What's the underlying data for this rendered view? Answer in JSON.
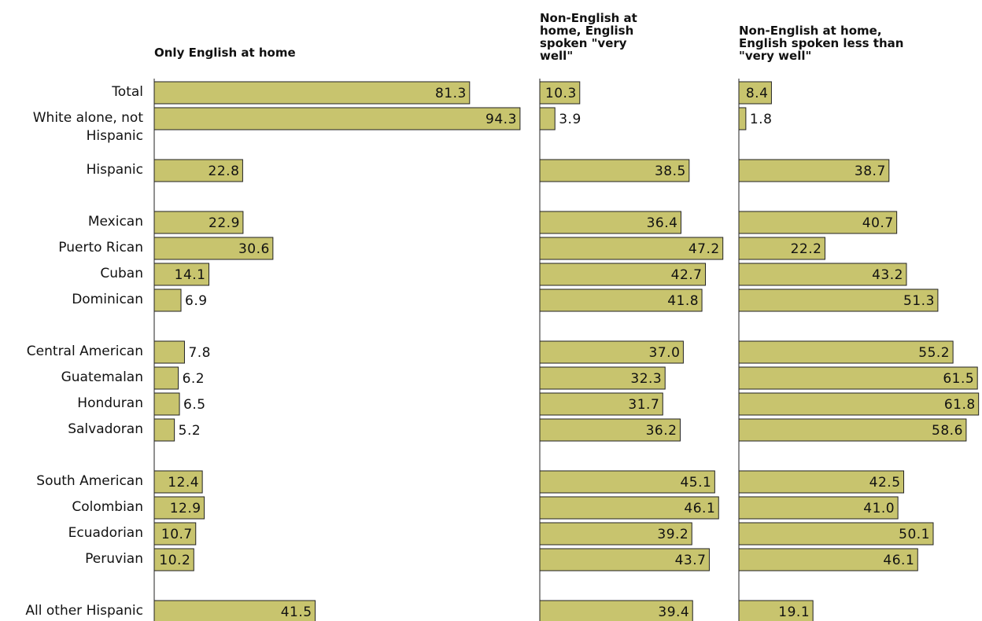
{
  "chart_data": {
    "type": "bar",
    "orientation": "horizontal",
    "color": "#c8c46e",
    "categories": [
      "Total",
      "White alone, not Hispanic",
      "Hispanic",
      "Mexican",
      "Puerto Rican",
      "Cuban",
      "Dominican",
      "Central American",
      "Guatemalan",
      "Honduran",
      "Salvadoran",
      "South American",
      "Colombian",
      "Ecuadorian",
      "Peruvian",
      "All other Hispanic"
    ],
    "series": [
      {
        "name": "Only English at home",
        "values": [
          81.3,
          94.3,
          22.8,
          22.9,
          30.6,
          14.1,
          6.9,
          7.8,
          6.2,
          6.5,
          5.2,
          12.4,
          12.9,
          10.7,
          10.2,
          41.5
        ],
        "value_labels": [
          "81.3",
          "94.3",
          "22.8",
          "22.9",
          "30.6",
          "14.1",
          "6.9",
          "7.8",
          "6.2",
          "6.5",
          "5.2",
          "12.4",
          "12.9",
          "10.7",
          "10.2",
          "41.5"
        ]
      },
      {
        "name": "Non-English at home, English spoken \"very well\"",
        "values": [
          10.3,
          3.9,
          38.5,
          36.4,
          47.2,
          42.7,
          41.8,
          37,
          32.3,
          31.7,
          36.2,
          45.1,
          46.1,
          39.2,
          43.7,
          39.4
        ],
        "value_labels": [
          "10.3",
          "3.9",
          "38.5",
          "36.4",
          "47.2",
          "42.7",
          "41.8",
          "37.0",
          "32.3",
          "31.7",
          "36.2",
          "45.1",
          "46.1",
          "39.2",
          "43.7",
          "39.4"
        ]
      },
      {
        "name": "Non-English at home, English spoken less than \"very well\"",
        "values": [
          8.4,
          1.8,
          38.7,
          40.7,
          22.2,
          43.2,
          51.3,
          55.2,
          61.5,
          61.8,
          58.6,
          42.5,
          41,
          50.1,
          46.1,
          19.1
        ],
        "value_labels": [
          "8.4",
          "1.8",
          "38.7",
          "40.7",
          "22.2",
          "43.2",
          "51.3",
          "55.2",
          "61.5",
          "61.8",
          "58.6",
          "42.5",
          "41.0",
          "50.1",
          "46.1",
          "19.1"
        ]
      }
    ]
  }
}
